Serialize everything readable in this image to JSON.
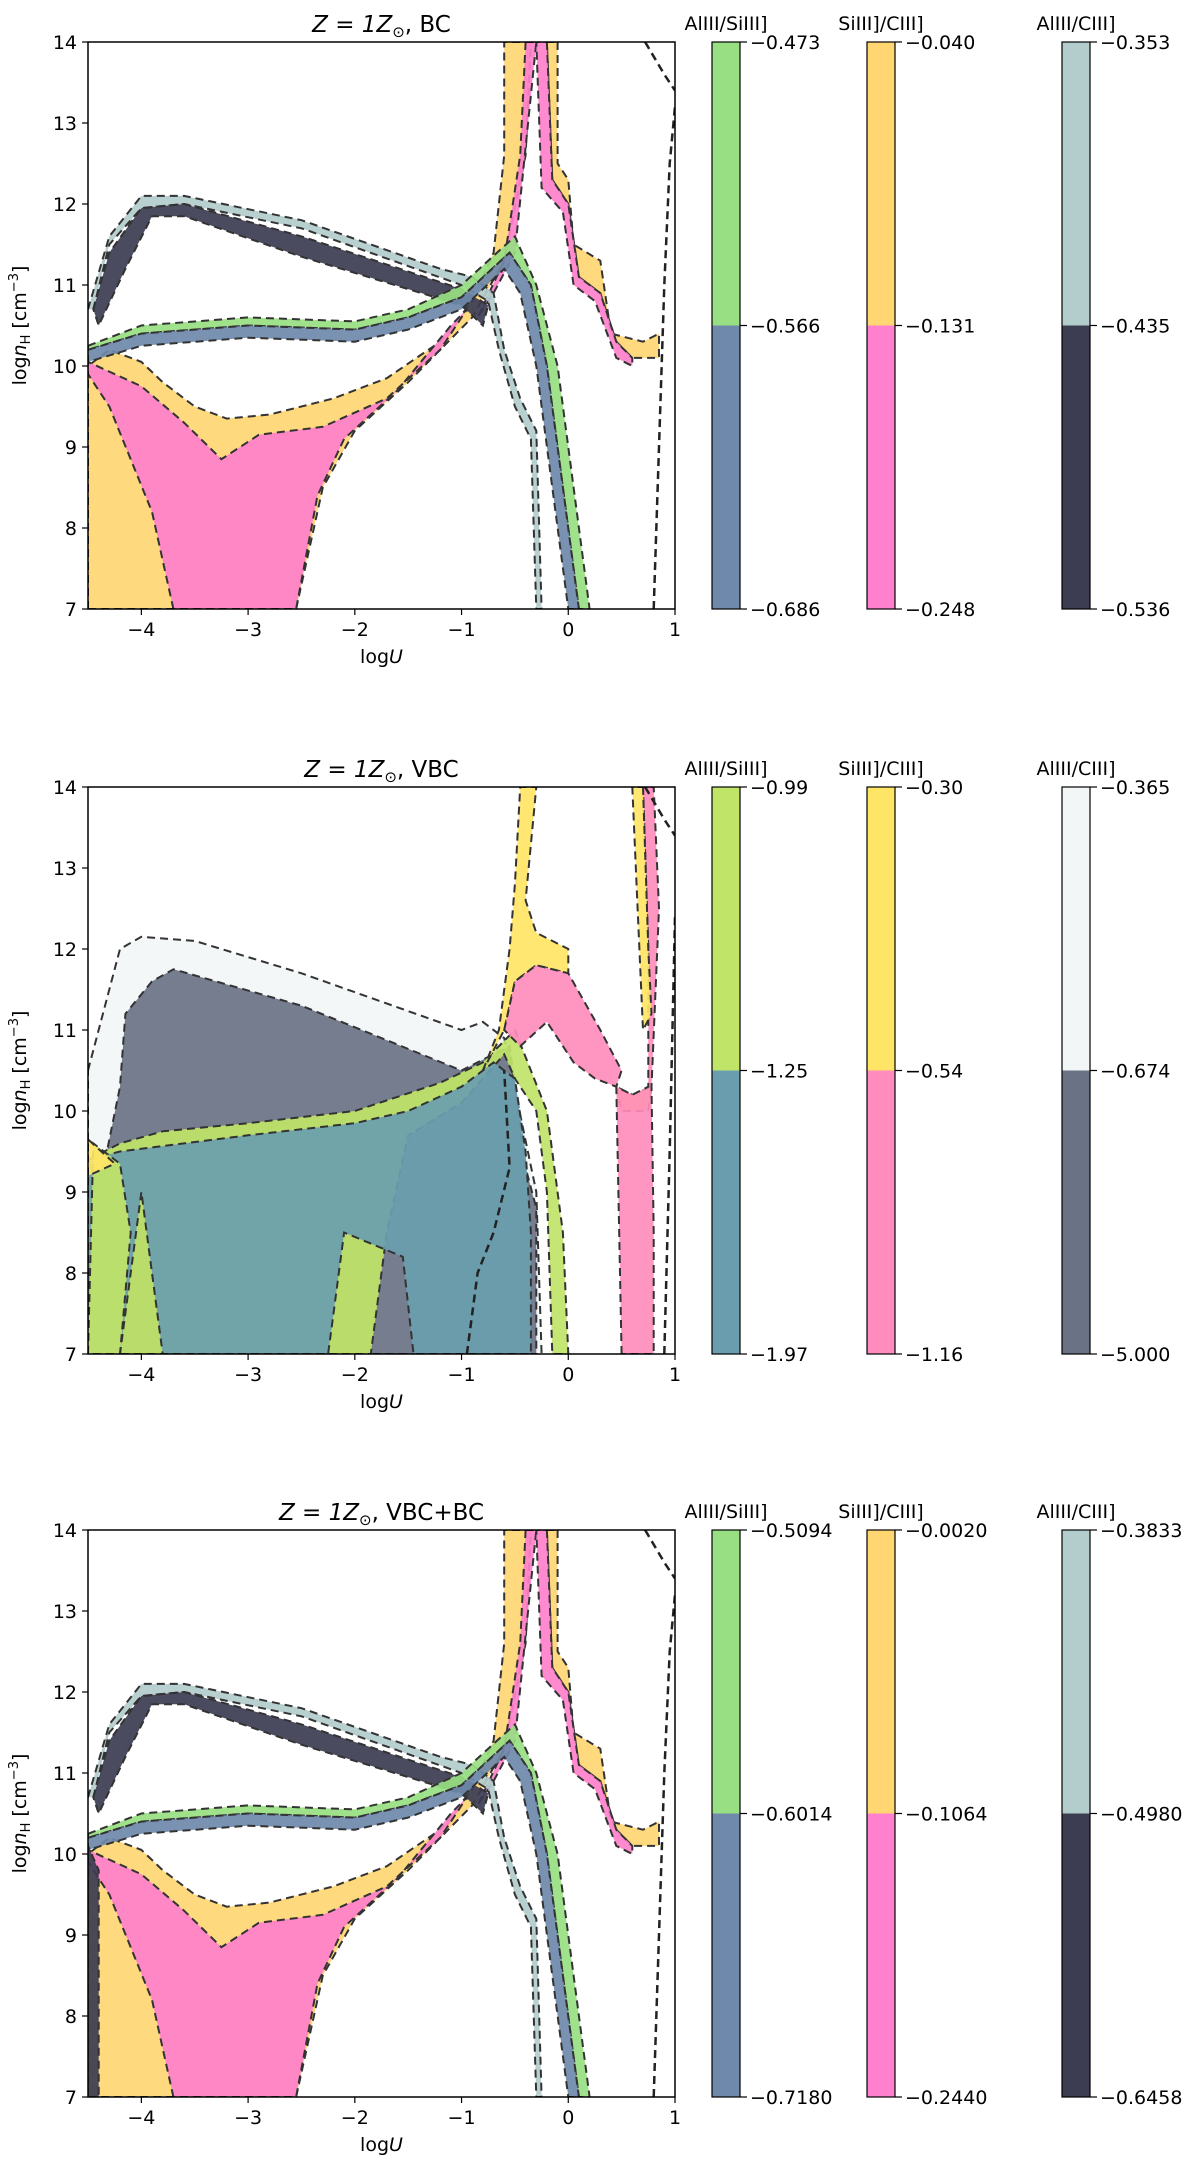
{
  "chart_data": [
    {
      "type": "area",
      "title_math": "Z = 1Z",
      "title_sub": "⊙",
      "title_suffix": ", BC",
      "xlabel_pre": "log",
      "xlabel_var": "U",
      "ylabel_pre": "log",
      "ylabel_var": "n",
      "ylabel_sub": "H",
      "ylabel_post": " [cm",
      "ylabel_sup": "−3",
      "ylabel_end": "]",
      "xlim": [
        -4.5,
        1
      ],
      "ylim": [
        7,
        14
      ],
      "xticks": [
        "−4",
        "−3",
        "−2",
        "−1",
        "0",
        "1"
      ],
      "yticks": [
        "7",
        "8",
        "9",
        "10",
        "11",
        "12",
        "13",
        "14"
      ],
      "colorbars": [
        {
          "label": "AlIII/SiIII]",
          "ticks": [
            "−0.473",
            "−0.566",
            "−0.686"
          ],
          "colors": [
            "#98de82",
            "#6e89ab"
          ]
        },
        {
          "label": "SiIII]/CIII]",
          "ticks": [
            "−0.040",
            "−0.131",
            "−0.248"
          ],
          "colors": [
            "#ffd672",
            "#ff80cc"
          ]
        },
        {
          "label": "AlIII/CIII]",
          "ticks": [
            "−0.353",
            "−0.435",
            "−0.536"
          ],
          "colors": [
            "#b3cccc",
            "#3c3c52"
          ]
        }
      ]
    },
    {
      "type": "area",
      "title_math": "Z = 1Z",
      "title_sub": "⊙",
      "title_suffix": ", VBC",
      "xlabel_pre": "log",
      "xlabel_var": "U",
      "ylabel_pre": "log",
      "ylabel_var": "n",
      "ylabel_sub": "H",
      "ylabel_post": " [cm",
      "ylabel_sup": "−3",
      "ylabel_end": "]",
      "xlim": [
        -4.5,
        1
      ],
      "ylim": [
        7,
        14
      ],
      "xticks": [
        "−4",
        "−3",
        "−2",
        "−1",
        "0",
        "1"
      ],
      "yticks": [
        "7",
        "8",
        "9",
        "10",
        "11",
        "12",
        "13",
        "14"
      ],
      "colorbars": [
        {
          "label": "AlIII/SiIII]",
          "ticks": [
            "−0.99",
            "−1.25",
            "−1.97"
          ],
          "colors": [
            "#c0e468",
            "#6a9eaf"
          ]
        },
        {
          "label": "SiIII]/CIII]",
          "ticks": [
            "−0.30",
            "−0.54",
            "−1.16"
          ],
          "colors": [
            "#ffe566",
            "#ff8cbc"
          ]
        },
        {
          "label": "AlIII/CIII]",
          "ticks": [
            "−0.365",
            "−0.674",
            "−5.000"
          ],
          "colors": [
            "#f3f6f7",
            "#6a7285"
          ]
        }
      ]
    },
    {
      "type": "area",
      "title_math": "Z = 1Z",
      "title_sub": "⊙",
      "title_suffix": ", VBC+BC",
      "xlabel_pre": "log",
      "xlabel_var": "U",
      "ylabel_pre": "log",
      "ylabel_var": "n",
      "ylabel_sub": "H",
      "ylabel_post": " [cm",
      "ylabel_sup": "−3",
      "ylabel_end": "]",
      "xlim": [
        -4.5,
        1
      ],
      "ylim": [
        7,
        14
      ],
      "xticks": [
        "−4",
        "−3",
        "−2",
        "−1",
        "0",
        "1"
      ],
      "yticks": [
        "7",
        "8",
        "9",
        "10",
        "11",
        "12",
        "13",
        "14"
      ],
      "colorbars": [
        {
          "label": "AlIII/SiIII]",
          "ticks": [
            "−0.5094",
            "−0.6014",
            "−0.7180"
          ],
          "colors": [
            "#98de82",
            "#6e89ab"
          ]
        },
        {
          "label": "SiIII]/CIII]",
          "ticks": [
            "−0.0020",
            "−0.1064",
            "−0.2440"
          ],
          "colors": [
            "#ffd672",
            "#ff80cc"
          ]
        },
        {
          "label": "AlIII/CIII]",
          "ticks": [
            "−0.3833",
            "−0.4980",
            "−0.6458"
          ],
          "colors": [
            "#b3cccc",
            "#3c3c52"
          ]
        }
      ]
    }
  ]
}
